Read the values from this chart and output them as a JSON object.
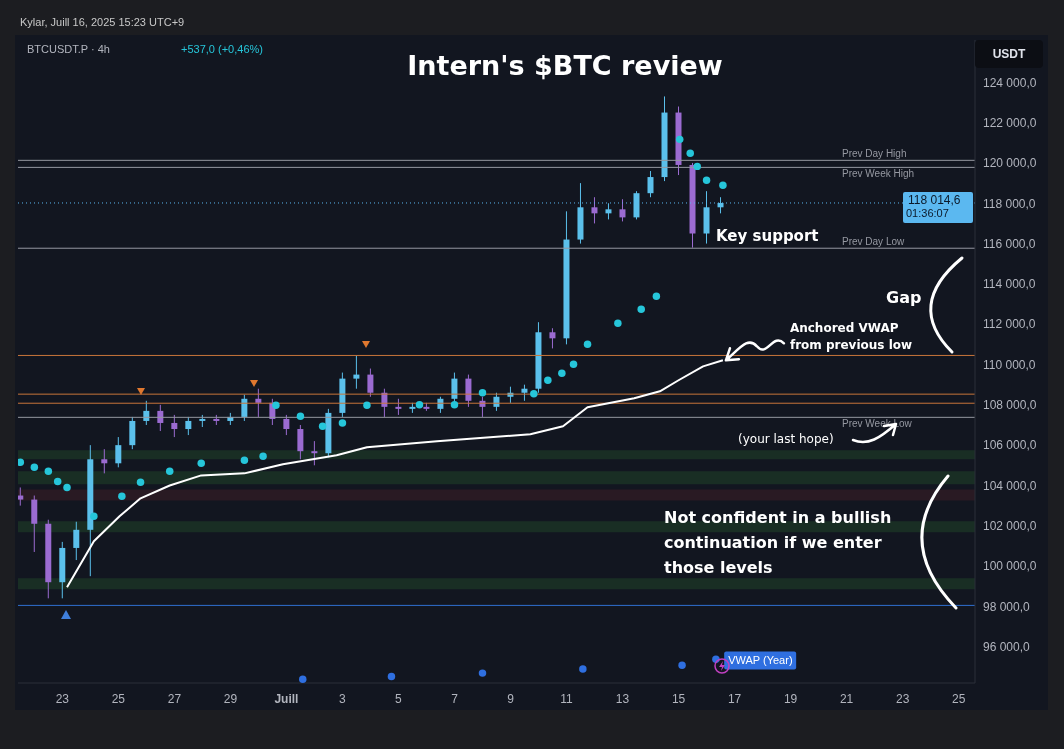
{
  "chart_data": {
    "type": "candlestick",
    "title": "Intern's $BTC review",
    "subtitle": "BTCUSDT.P · 4h",
    "xlim": [
      "2025-06-21T10:00",
      "2025-07-25T14:00"
    ],
    "xticks": [
      {
        "value": "2025-06-23",
        "label": "23"
      },
      {
        "value": "2025-06-25",
        "label": "25"
      },
      {
        "value": "2025-06-27",
        "label": "27"
      },
      {
        "value": "2025-06-29",
        "label": "29"
      },
      {
        "value": "2025-07-01",
        "label": "Juill"
      },
      {
        "value": "2025-07-03",
        "label": "3"
      },
      {
        "value": "2025-07-05",
        "label": "5"
      },
      {
        "value": "2025-07-07",
        "label": "7"
      },
      {
        "value": "2025-07-09",
        "label": "9"
      },
      {
        "value": "2025-07-11",
        "label": "11"
      },
      {
        "value": "2025-07-13",
        "label": "13"
      },
      {
        "value": "2025-07-15",
        "label": "15"
      },
      {
        "value": "2025-07-17",
        "label": "17"
      },
      {
        "value": "2025-07-19",
        "label": "19"
      },
      {
        "value": "2025-07-21",
        "label": "21"
      },
      {
        "value": "2025-07-23",
        "label": "23"
      },
      {
        "value": "2025-07-25",
        "label": "25"
      }
    ],
    "ylim": [
      94200,
      126100
    ],
    "yticks": [
      {
        "value": 96000,
        "label": "96 000,0"
      },
      {
        "value": 98000,
        "label": "98 000,0"
      },
      {
        "value": 100000,
        "label": "100 000,0"
      },
      {
        "value": 102000,
        "label": "102 000,0"
      },
      {
        "value": 104000,
        "label": "104 000,0"
      },
      {
        "value": 106000,
        "label": "106 000,0"
      },
      {
        "value": 108000,
        "label": "108 000,0"
      },
      {
        "value": 110000,
        "label": "110 000,0"
      },
      {
        "value": 112000,
        "label": "112 000,0"
      },
      {
        "value": 114000,
        "label": "114 000,0"
      },
      {
        "value": 116000,
        "label": "116 000,0"
      },
      {
        "value": 118000,
        "label": "118 000,0"
      },
      {
        "value": 120000,
        "label": "120 000,0"
      },
      {
        "value": 122000,
        "label": "122 000,0"
      },
      {
        "value": 124000,
        "label": "124 000,0"
      }
    ],
    "series": [
      {
        "type": "candlestick",
        "x": [
          "2025-06-21T12:00",
          "2025-06-22T00:00",
          "2025-06-22T12:00",
          "2025-06-23T00:00",
          "2025-06-23T12:00",
          "2025-06-24T00:00",
          "2025-06-24T12:00",
          "2025-06-25T00:00",
          "2025-06-25T12:00",
          "2025-06-26T00:00",
          "2025-06-26T12:00",
          "2025-06-27T00:00",
          "2025-06-27T12:00",
          "2025-06-28T00:00",
          "2025-06-28T12:00",
          "2025-06-29T00:00",
          "2025-06-29T12:00",
          "2025-06-30T00:00",
          "2025-06-30T12:00",
          "2025-07-01T00:00",
          "2025-07-01T12:00",
          "2025-07-02T00:00",
          "2025-07-02T12:00",
          "2025-07-03T00:00",
          "2025-07-03T12:00",
          "2025-07-04T00:00",
          "2025-07-04T12:00",
          "2025-07-05T00:00",
          "2025-07-05T12:00",
          "2025-07-06T00:00",
          "2025-07-06T12:00",
          "2025-07-07T00:00",
          "2025-07-07T12:00",
          "2025-07-08T00:00",
          "2025-07-08T12:00",
          "2025-07-09T00:00",
          "2025-07-09T12:00",
          "2025-07-10T00:00",
          "2025-07-10T12:00",
          "2025-07-11T00:00",
          "2025-07-11T12:00",
          "2025-07-12T00:00",
          "2025-07-12T12:00",
          "2025-07-13T00:00",
          "2025-07-13T12:00",
          "2025-07-14T00:00",
          "2025-07-14T12:00",
          "2025-07-15T00:00",
          "2025-07-15T12:00",
          "2025-07-16T00:00",
          "2025-07-16T12:00"
        ],
        "ohlc": [
          [
            103500,
            103900,
            103000,
            103300
          ],
          [
            103300,
            103500,
            100700,
            102100
          ],
          [
            102100,
            102300,
            98400,
            99200
          ],
          [
            99200,
            101200,
            98400,
            100900
          ],
          [
            100900,
            102200,
            100300,
            101800
          ],
          [
            101800,
            106000,
            99500,
            105300
          ],
          [
            105300,
            105800,
            104600,
            105100
          ],
          [
            105100,
            106400,
            104900,
            106000
          ],
          [
            106000,
            107400,
            105800,
            107200
          ],
          [
            107200,
            108200,
            107000,
            107700
          ],
          [
            107700,
            108000,
            106700,
            107100
          ],
          [
            107100,
            107500,
            106400,
            106800
          ],
          [
            106800,
            107400,
            106500,
            107200
          ],
          [
            107200,
            107500,
            106900,
            107300
          ],
          [
            107300,
            107500,
            107000,
            107200
          ],
          [
            107200,
            107600,
            107000,
            107400
          ],
          [
            107400,
            108500,
            107200,
            108300
          ],
          [
            108300,
            108800,
            107400,
            108100
          ],
          [
            108100,
            108300,
            107000,
            107300
          ],
          [
            107300,
            107500,
            106500,
            106800
          ],
          [
            106800,
            107000,
            105300,
            105700
          ],
          [
            105700,
            106200,
            105000,
            105600
          ],
          [
            105600,
            107800,
            105400,
            107600
          ],
          [
            107600,
            109600,
            107400,
            109300
          ],
          [
            109300,
            110450,
            108800,
            109500
          ],
          [
            109500,
            109800,
            108400,
            108600
          ],
          [
            108600,
            108800,
            107400,
            107900
          ],
          [
            107900,
            108300,
            107500,
            107800
          ],
          [
            107800,
            108100,
            107600,
            107900
          ],
          [
            107900,
            108100,
            107700,
            107800
          ],
          [
            107800,
            108400,
            107600,
            108300
          ],
          [
            108300,
            109600,
            108100,
            109300
          ],
          [
            109300,
            109500,
            107900,
            108200
          ],
          [
            108200,
            108400,
            107400,
            107900
          ],
          [
            107900,
            108600,
            107700,
            108400
          ],
          [
            108400,
            108900,
            108100,
            108600
          ],
          [
            108600,
            109000,
            108200,
            108800
          ],
          [
            108800,
            112100,
            108600,
            111600
          ],
          [
            111600,
            111800,
            110800,
            111300
          ],
          [
            111300,
            117600,
            111000,
            116200
          ],
          [
            116200,
            119000,
            116000,
            117800
          ],
          [
            117800,
            118300,
            117000,
            117500
          ],
          [
            117500,
            118000,
            117200,
            117700
          ],
          [
            117700,
            118200,
            117100,
            117300
          ],
          [
            117300,
            118600,
            117200,
            118500
          ],
          [
            118500,
            119600,
            118300,
            119300
          ],
          [
            119300,
            123300,
            119100,
            122500
          ],
          [
            122500,
            122800,
            119400,
            119900
          ],
          [
            119900,
            120000,
            115800,
            116500
          ],
          [
            116500,
            118600,
            116000,
            117800
          ],
          [
            117800,
            118300,
            117500,
            118014.6
          ]
        ]
      },
      {
        "type": "line",
        "color": "#ffffff",
        "x": [
          "2025-06-23T04:00",
          "2025-06-24T03:00",
          "2025-06-25T01:00",
          "2025-06-25T19:00",
          "2025-06-26T20:00",
          "2025-06-27T23:00",
          "2025-06-29T12:00",
          "2025-06-30T21:00",
          "2025-07-02T19:00",
          "2025-07-03T21:00",
          "2025-07-06T09:00",
          "2025-07-09T17:00",
          "2025-07-10T21:00",
          "2025-07-11T18:00",
          "2025-07-13T10:00",
          "2025-07-14T08:00",
          "2025-07-15T00:00",
          "2025-07-15T21:00",
          "2025-07-16T14:00"
        ],
        "values": [
          98950,
          101230,
          102470,
          103360,
          104000,
          104500,
          104600,
          105050,
          105500,
          105900,
          106190,
          106540,
          106940,
          107880,
          108330,
          108670,
          109220,
          109910,
          110210
        ]
      },
      {
        "type": "scatter",
        "color": "#26c6da",
        "marker": "circle",
        "x": [
          "2025-06-21T12:00",
          "2025-06-22T00:00",
          "2025-06-22T12:00",
          "2025-06-22T20:00",
          "2025-06-23T04:00",
          "2025-06-24T03:00",
          "2025-06-25T03:00",
          "2025-06-25T19:00",
          "2025-06-26T20:00",
          "2025-06-27T23:00",
          "2025-06-29T12:00",
          "2025-06-30T04:00",
          "2025-06-30T15:00",
          "2025-07-01T12:00",
          "2025-07-02T07:00",
          "2025-07-03T00:00",
          "2025-07-03T21:00",
          "2025-07-05T18:00",
          "2025-07-07T00:00",
          "2025-07-08T00:00",
          "2025-07-09T20:00",
          "2025-07-10T08:00",
          "2025-07-10T20:00",
          "2025-07-11T06:00",
          "2025-07-11T18:00",
          "2025-07-12T20:00",
          "2025-07-13T16:00",
          "2025-07-14T05:00",
          "2025-07-15T01:00",
          "2025-07-15T10:00",
          "2025-07-15T16:00",
          "2025-07-16T00:00",
          "2025-07-16T14:00"
        ],
        "values": [
          105150,
          104900,
          104700,
          104200,
          103900,
          102470,
          103460,
          104160,
          104700,
          105100,
          105250,
          105450,
          107980,
          107430,
          106940,
          107100,
          107980,
          108000,
          108000,
          108600,
          108550,
          109220,
          109570,
          110010,
          111000,
          112050,
          112740,
          113390,
          121170,
          120480,
          119830,
          119140,
          118890
        ]
      },
      {
        "type": "scatter",
        "name": "VWAP (Year)",
        "color": "#2f6fe0",
        "marker": "circle",
        "x": [
          "2025-07-01T14:00",
          "2025-07-04T18:00",
          "2025-07-08T00:00",
          "2025-07-11T14:00",
          "2025-07-15T03:00",
          "2025-07-16T08:00"
        ],
        "values": [
          94390,
          94520,
          94690,
          94890,
          95080,
          95380
        ]
      }
    ],
    "ref_lines": [
      {
        "axis": "y",
        "value": 120130,
        "label": "Prev Day High",
        "color": "#9598a1"
      },
      {
        "axis": "y",
        "value": 119780,
        "label": "Prev Week High",
        "color": "#9598a1"
      },
      {
        "axis": "y",
        "value": 115770,
        "label": "Prev Day Low",
        "color": "#9598a1"
      },
      {
        "axis": "y",
        "value": 107380,
        "label": "Prev Week Low",
        "color": "#9598a1"
      },
      {
        "axis": "y",
        "value": 118014.6,
        "label": "118 014,6",
        "color": "#5bb8f0",
        "line_style": "dotted"
      },
      {
        "axis": "y",
        "value": 110450,
        "color": "#c8753a"
      },
      {
        "axis": "y",
        "value": 108530,
        "color": "#c8753a"
      },
      {
        "axis": "y",
        "value": 108080,
        "color": "#c8753a"
      },
      {
        "axis": "y",
        "value": 98050,
        "color": "#2f6fd0"
      }
    ],
    "bands": [
      {
        "axis": "y",
        "from": 105300,
        "to": 105750,
        "color": "#1b3326"
      },
      {
        "axis": "y",
        "from": 104060,
        "to": 104700,
        "color": "#1b3326"
      },
      {
        "axis": "y",
        "from": 103260,
        "to": 103800,
        "color": "#2e1b24"
      },
      {
        "axis": "y",
        "from": 101680,
        "to": 102230,
        "color": "#1b3326"
      },
      {
        "axis": "y",
        "from": 98850,
        "to": 99400,
        "color": "#1b3326"
      }
    ],
    "annotations": [
      "Kylar, Juill 16, 2025 15:23 UTC+9",
      "+537,0 (+0,46%)",
      "USDT",
      "01:36:07",
      "Key support",
      "Gap",
      {
        "text": "Anchored VWAP from previous low",
        "x": "2025-07-16T14:00",
        "y": 110210
      },
      "(your last hope)",
      "Not confident in a bullish continuation if we enter those levels"
    ]
  }
}
